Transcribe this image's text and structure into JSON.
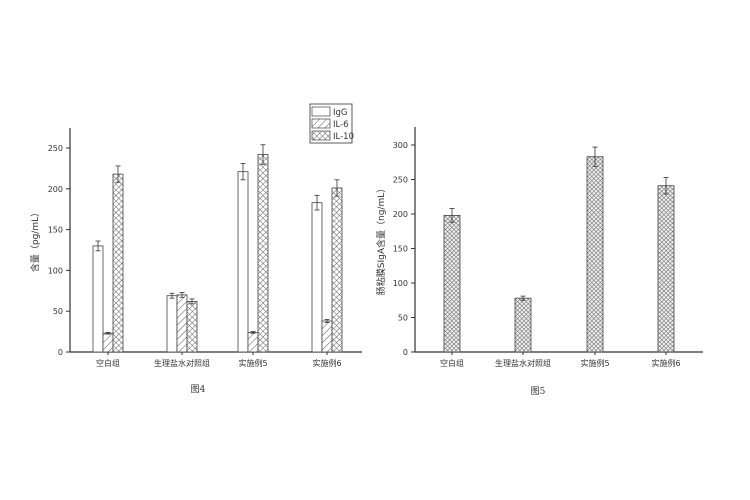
{
  "chart_data": [
    {
      "type": "bar",
      "title": "",
      "caption": "图4",
      "xlabel": "",
      "ylabel": "含量（pg/mL）",
      "ylim": [
        0,
        280
      ],
      "yticks": [
        0,
        50,
        100,
        150,
        200,
        250
      ],
      "categories": [
        "空白组",
        "生理盐水对照组",
        "实施例5",
        "实施例6"
      ],
      "legend_position": "top-right",
      "grid": false,
      "series": [
        {
          "name": "IgG",
          "pattern": "none",
          "values": [
            130,
            69,
            221,
            183
          ],
          "errors": [
            6,
            3,
            10,
            9
          ]
        },
        {
          "name": "IL-6",
          "pattern": "diagonal-hatch",
          "values": [
            23,
            70,
            24,
            38
          ],
          "errors": [
            1,
            3,
            1,
            2
          ]
        },
        {
          "name": "IL-10",
          "pattern": "cross-hatch",
          "values": [
            218,
            62,
            242,
            201
          ],
          "errors": [
            10,
            3,
            12,
            10
          ]
        }
      ]
    },
    {
      "type": "bar",
      "title": "",
      "caption": "图5",
      "xlabel": "",
      "ylabel": "肠粘膜SIgA含量（ng/mL）",
      "ylim": [
        0,
        325
      ],
      "yticks": [
        0,
        50,
        100,
        150,
        200,
        250,
        300
      ],
      "categories": [
        "空白组",
        "生理盐水对照组",
        "实施例5",
        "实施例6"
      ],
      "grid": false,
      "series": [
        {
          "pattern": "fine-cross-hatch",
          "values": [
            198,
            78,
            283,
            241
          ],
          "errors": [
            10,
            3,
            14,
            12
          ]
        }
      ]
    }
  ]
}
